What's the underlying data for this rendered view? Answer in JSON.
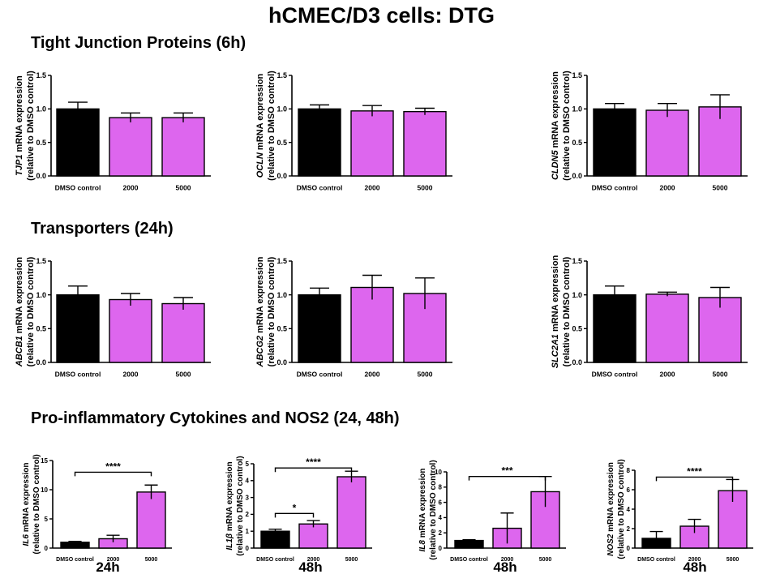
{
  "main_title": "hCMEC/D3 cells: DTG",
  "sections": [
    {
      "title": "Tight Junction Proteins (6h)"
    },
    {
      "title": "Transporters (24h)"
    },
    {
      "title": "Pro-inflammatory Cytokines and NOS2 (24, 48h)"
    }
  ],
  "time_labels": [
    "24h",
    "48h",
    "48h",
    "48h"
  ],
  "colors": {
    "control": "#000000",
    "treated": "#dd66ee",
    "axis": "#000000"
  },
  "chart_data": [
    {
      "id": "tjp1",
      "type": "bar",
      "gene": "TJP1",
      "ylabel_suffix": " mRNA expression",
      "ylabel_line2": "(relative to DMSO control)",
      "categories": [
        "DMSO control",
        "2000",
        "5000"
      ],
      "values": [
        1.0,
        0.87,
        0.87
      ],
      "errors": [
        0.1,
        0.07,
        0.07
      ],
      "ylim": [
        0,
        1.5
      ],
      "yticks": [
        "0.0",
        "0.5",
        "1.0",
        "1.5"
      ],
      "tick_values": [
        0,
        0.5,
        1.0,
        1.5
      ],
      "significance": []
    },
    {
      "id": "ocln",
      "type": "bar",
      "gene": "OCLN",
      "ylabel_suffix": " mRNA expression",
      "ylabel_line2": "(relative to DMSO control)",
      "categories": [
        "DMSO control",
        "2000",
        "5000"
      ],
      "values": [
        1.0,
        0.97,
        0.96
      ],
      "errors": [
        0.06,
        0.08,
        0.05
      ],
      "ylim": [
        0,
        1.5
      ],
      "yticks": [
        "0.0",
        "0.5",
        "1.0",
        "1.5"
      ],
      "tick_values": [
        0,
        0.5,
        1.0,
        1.5
      ],
      "significance": []
    },
    {
      "id": "cldn5",
      "type": "bar",
      "gene": "CLDN5",
      "ylabel_suffix": " mRNA expression",
      "ylabel_line2": "(relative to DMSO control)",
      "categories": [
        "DMSO control",
        "2000",
        "5000"
      ],
      "values": [
        1.0,
        0.98,
        1.03
      ],
      "errors": [
        0.08,
        0.1,
        0.18
      ],
      "ylim": [
        0,
        1.5
      ],
      "yticks": [
        "0.0",
        "0.5",
        "1.0",
        "1.5"
      ],
      "tick_values": [
        0,
        0.5,
        1.0,
        1.5
      ],
      "significance": []
    },
    {
      "id": "abcb1",
      "type": "bar",
      "gene": "ABCB1",
      "ylabel_suffix": " mRNA expression",
      "ylabel_line2": "(relative to DMSO control)",
      "categories": [
        "DMSO control",
        "2000",
        "5000"
      ],
      "values": [
        1.0,
        0.93,
        0.87
      ],
      "errors": [
        0.13,
        0.09,
        0.09
      ],
      "ylim": [
        0,
        1.5
      ],
      "yticks": [
        "0.0",
        "0.5",
        "1.0",
        "1.5"
      ],
      "tick_values": [
        0,
        0.5,
        1.0,
        1.5
      ],
      "significance": []
    },
    {
      "id": "abcg2",
      "type": "bar",
      "gene": "ABCG2",
      "ylabel_suffix": " mRNA expression",
      "ylabel_line2": "(relative to DMSO control)",
      "categories": [
        "DMSO control",
        "2000",
        "5000"
      ],
      "values": [
        1.0,
        1.11,
        1.02
      ],
      "errors": [
        0.1,
        0.18,
        0.23
      ],
      "ylim": [
        0,
        1.5
      ],
      "yticks": [
        "0.0",
        "0.5",
        "1.0",
        "1.5"
      ],
      "tick_values": [
        0,
        0.5,
        1.0,
        1.5
      ],
      "significance": []
    },
    {
      "id": "slc2a1",
      "type": "bar",
      "gene": "SLC2A1",
      "ylabel_suffix": " mRNA expression",
      "ylabel_line2": "(relative to DMSO control)",
      "categories": [
        "DMSO control",
        "2000",
        "5000"
      ],
      "values": [
        1.0,
        1.01,
        0.96
      ],
      "errors": [
        0.13,
        0.03,
        0.15
      ],
      "ylim": [
        0,
        1.5
      ],
      "yticks": [
        "0.0",
        "0.5",
        "1.0",
        "1.5"
      ],
      "tick_values": [
        0,
        0.5,
        1.0,
        1.5
      ],
      "significance": []
    },
    {
      "id": "il6",
      "type": "bar",
      "gene": "IL6",
      "ylabel_suffix": " mRNA expression",
      "ylabel_line2": "(relative to DMSO control)",
      "categories": [
        "DMSO control",
        "2000",
        "5000"
      ],
      "values": [
        1.0,
        1.6,
        9.6
      ],
      "errors": [
        0.15,
        0.6,
        1.2
      ],
      "ylim": [
        0,
        15
      ],
      "yticks": [
        "0",
        "5",
        "10",
        "15"
      ],
      "tick_values": [
        0,
        5,
        10,
        15
      ],
      "significance": [
        {
          "from": 0,
          "to": 2,
          "label": "****",
          "y": 13
        }
      ]
    },
    {
      "id": "il1b",
      "type": "bar",
      "gene": "IL1β",
      "ylabel_suffix": " mRNA expression",
      "ylabel_line2": "(relative to DMSO control)",
      "categories": [
        "DMSO control",
        "2000",
        "5000"
      ],
      "values": [
        1.0,
        1.43,
        4.23
      ],
      "errors": [
        0.12,
        0.2,
        0.33
      ],
      "ylim": [
        0,
        5
      ],
      "yticks": [
        "0",
        "1",
        "2",
        "3",
        "4",
        "5"
      ],
      "tick_values": [
        0,
        1,
        2,
        3,
        4,
        5
      ],
      "significance": [
        {
          "from": 0,
          "to": 1,
          "label": "*",
          "y": 2.05
        },
        {
          "from": 0,
          "to": 2,
          "label": "****",
          "y": 4.75
        }
      ]
    },
    {
      "id": "il8",
      "type": "bar",
      "gene": "IL8",
      "ylabel_suffix": " mRNA expression",
      "ylabel_line2": "(relative to DMSO control)",
      "categories": [
        "DMSO control",
        "2000",
        "5000"
      ],
      "values": [
        1.0,
        2.6,
        7.4
      ],
      "errors": [
        0.1,
        2.0,
        2.0
      ],
      "ylim": [
        0,
        10
      ],
      "yticks": [
        "0",
        "2",
        "4",
        "6",
        "8",
        "10"
      ],
      "tick_values": [
        0,
        2,
        4,
        6,
        8,
        10
      ],
      "significance": [
        {
          "from": 0,
          "to": 2,
          "label": "***",
          "y": 9.4
        }
      ]
    },
    {
      "id": "nos2",
      "type": "bar",
      "gene": "NOS2",
      "ylabel_suffix": " mRNA expression",
      "ylabel_line2": "(relative to DMSO control)",
      "categories": [
        "DMSO control",
        "2000",
        "5000"
      ],
      "values": [
        1.0,
        2.25,
        5.9
      ],
      "errors": [
        0.7,
        0.7,
        1.15
      ],
      "ylim": [
        0,
        8
      ],
      "yticks": [
        "0",
        "2",
        "4",
        "6",
        "8"
      ],
      "tick_values": [
        0,
        2,
        4,
        6,
        8
      ],
      "significance": [
        {
          "from": 0,
          "to": 2,
          "label": "****",
          "y": 7.3
        }
      ]
    }
  ]
}
